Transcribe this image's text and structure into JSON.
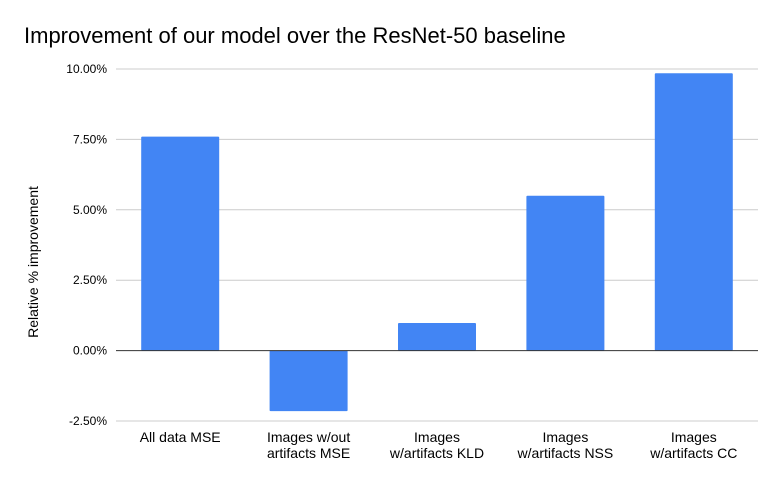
{
  "chart_data": {
    "type": "bar",
    "title": "Improvement of our model over the ResNet-50 baseline",
    "xlabel": "",
    "ylabel": "Relative % improvement",
    "categories": [
      [
        "All data MSE"
      ],
      [
        "Images w/out",
        "artifacts MSE"
      ],
      [
        "Images",
        "w/artifacts KLD"
      ],
      [
        "Images",
        "w/artifacts NSS"
      ],
      [
        "Images",
        "w/artifacts CC"
      ]
    ],
    "values": [
      7.6,
      -2.15,
      0.98,
      5.5,
      9.85
    ],
    "ylim": [
      -2.5,
      10.0
    ],
    "yticks": [
      -2.5,
      0.0,
      2.5,
      5.0,
      7.5,
      10.0
    ],
    "ytick_labels": [
      "-2.50%",
      "0.00%",
      "2.50%",
      "5.00%",
      "7.50%",
      "10.00%"
    ],
    "grid": true,
    "legend": "none",
    "bar_color": "#4285f4",
    "grid_color": "#cccccc",
    "zero_line_color": "#333333"
  }
}
